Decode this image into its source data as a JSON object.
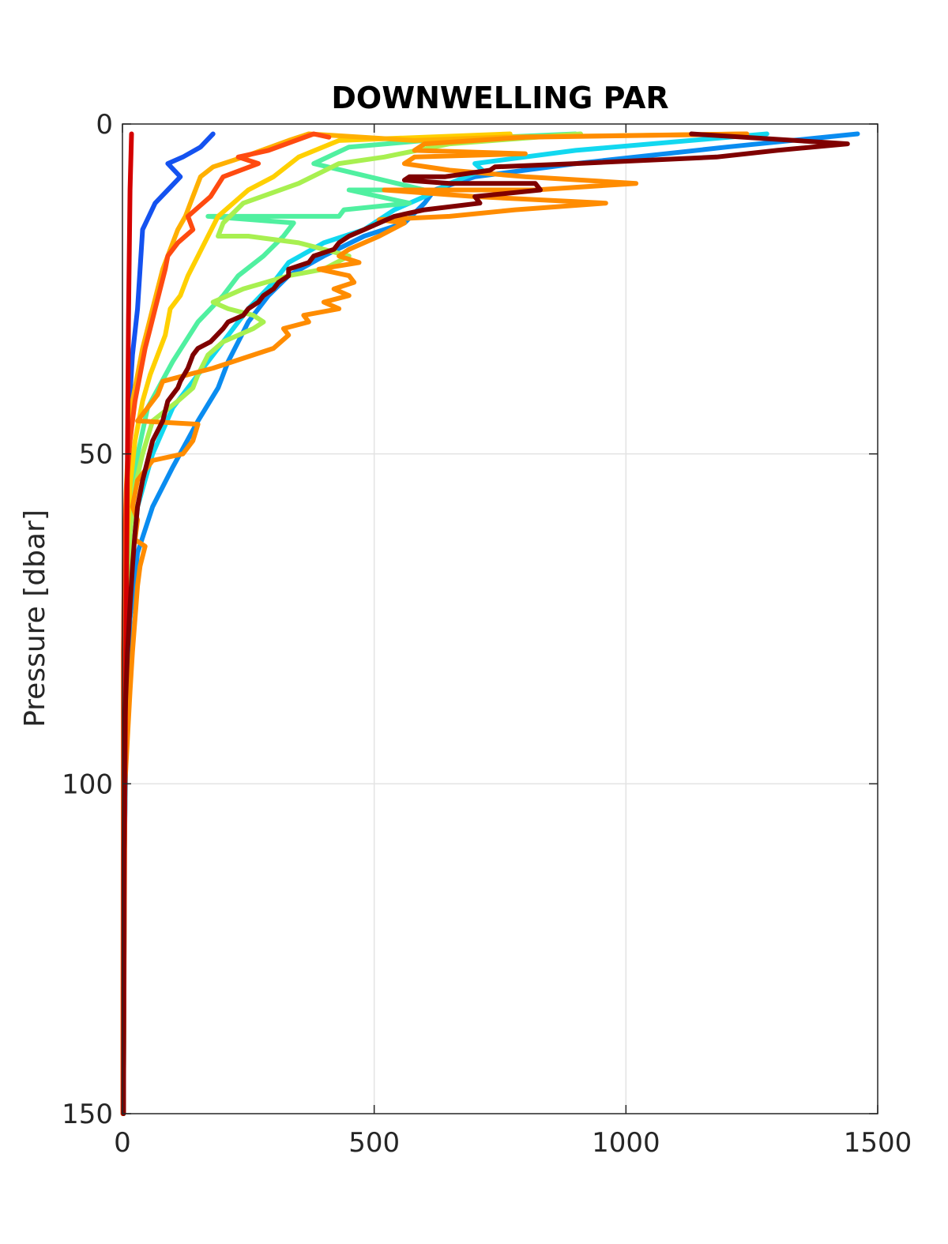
{
  "chart_data": {
    "type": "line",
    "title": "DOWNWELLING PAR",
    "xlabel": "",
    "ylabel": "Pressure [dbar]",
    "xlim": [
      0,
      1500
    ],
    "ylim": [
      0,
      150
    ],
    "y_reversed": true,
    "grid": true,
    "xticks": [
      0,
      500,
      1000,
      1500
    ],
    "yticks": [
      0,
      50,
      100,
      150
    ],
    "series": [
      {
        "color": "#1452f0",
        "points": [
          [
            180,
            1.5
          ],
          [
            155,
            3.5
          ],
          [
            120,
            5
          ],
          [
            90,
            6
          ],
          [
            115,
            8
          ],
          [
            90,
            10
          ],
          [
            65,
            12
          ],
          [
            40,
            16
          ],
          [
            35,
            22
          ],
          [
            30,
            28
          ],
          [
            20,
            35
          ],
          [
            12,
            45
          ],
          [
            8,
            60
          ],
          [
            5,
            80
          ],
          [
            3,
            100
          ],
          [
            2,
            150
          ]
        ]
      },
      {
        "color": "#0a8cf0",
        "points": [
          [
            1460,
            1.5
          ],
          [
            1200,
            3.5
          ],
          [
            900,
            6
          ],
          [
            700,
            8
          ],
          [
            620,
            10
          ],
          [
            600,
            12
          ],
          [
            560,
            15
          ],
          [
            480,
            17
          ],
          [
            400,
            20
          ],
          [
            330,
            23
          ],
          [
            290,
            26
          ],
          [
            250,
            30
          ],
          [
            230,
            33
          ],
          [
            210,
            36
          ],
          [
            190,
            40
          ],
          [
            150,
            45
          ],
          [
            100,
            52
          ],
          [
            60,
            58
          ],
          [
            30,
            65
          ],
          [
            15,
            75
          ],
          [
            8,
            90
          ],
          [
            4,
            110
          ],
          [
            2,
            150
          ]
        ]
      },
      {
        "color": "#12d8f0",
        "points": [
          [
            1280,
            1.5
          ],
          [
            900,
            4
          ],
          [
            700,
            6
          ],
          [
            715,
            7
          ],
          [
            650,
            9
          ],
          [
            600,
            11
          ],
          [
            540,
            13
          ],
          [
            480,
            16
          ],
          [
            400,
            18
          ],
          [
            330,
            21
          ],
          [
            300,
            24
          ],
          [
            250,
            28
          ],
          [
            200,
            33
          ],
          [
            150,
            38
          ],
          [
            100,
            43
          ],
          [
            60,
            50
          ],
          [
            30,
            58
          ],
          [
            15,
            70
          ],
          [
            8,
            85
          ],
          [
            4,
            110
          ],
          [
            2,
            150
          ]
        ]
      },
      {
        "color": "#50f0a0",
        "points": [
          [
            900,
            1.5
          ],
          [
            600,
            2.5
          ],
          [
            450,
            3.5
          ],
          [
            380,
            6
          ],
          [
            600,
            10
          ],
          [
            450,
            10
          ],
          [
            570,
            12
          ],
          [
            440,
            13
          ],
          [
            430,
            14
          ],
          [
            170,
            14
          ],
          [
            340,
            15
          ],
          [
            320,
            17
          ],
          [
            280,
            20
          ],
          [
            230,
            23
          ],
          [
            200,
            26
          ],
          [
            150,
            30
          ],
          [
            100,
            36
          ],
          [
            50,
            43
          ],
          [
            25,
            52
          ],
          [
            12,
            62
          ],
          [
            6,
            75
          ],
          [
            3,
            95
          ],
          [
            2,
            150
          ]
        ]
      },
      {
        "color": "#a8f050",
        "points": [
          [
            910,
            1.5
          ],
          [
            650,
            3
          ],
          [
            520,
            5
          ],
          [
            430,
            6
          ],
          [
            350,
            9
          ],
          [
            240,
            12
          ],
          [
            200,
            15
          ],
          [
            190,
            17
          ],
          [
            250,
            17
          ],
          [
            350,
            18
          ],
          [
            450,
            20
          ],
          [
            400,
            22
          ],
          [
            330,
            23
          ],
          [
            240,
            25
          ],
          [
            180,
            27
          ],
          [
            210,
            28
          ],
          [
            260,
            29
          ],
          [
            280,
            30
          ],
          [
            260,
            31
          ],
          [
            200,
            33
          ],
          [
            170,
            35
          ],
          [
            150,
            38
          ],
          [
            140,
            40
          ],
          [
            110,
            42
          ],
          [
            60,
            45
          ],
          [
            40,
            50
          ],
          [
            25,
            55
          ],
          [
            15,
            62
          ],
          [
            8,
            75
          ],
          [
            4,
            95
          ],
          [
            2,
            150
          ]
        ]
      },
      {
        "color": "#ffd000",
        "points": [
          [
            770,
            1.5
          ],
          [
            430,
            2.5
          ],
          [
            350,
            5
          ],
          [
            300,
            8
          ],
          [
            250,
            10
          ],
          [
            220,
            12
          ],
          [
            190,
            14
          ],
          [
            170,
            17
          ],
          [
            150,
            20
          ],
          [
            130,
            23
          ],
          [
            115,
            26
          ],
          [
            95,
            28
          ],
          [
            85,
            32
          ],
          [
            70,
            35
          ],
          [
            55,
            38
          ],
          [
            40,
            42
          ],
          [
            25,
            48
          ],
          [
            15,
            55
          ],
          [
            8,
            65
          ],
          [
            4,
            80
          ],
          [
            2,
            100
          ],
          [
            1,
            150
          ]
        ]
      },
      {
        "color": "#ffb000",
        "points": [
          [
            1240,
            1.5
          ],
          [
            750,
            2
          ],
          [
            580,
            2.5
          ],
          [
            370,
            1.5
          ],
          [
            330,
            2.5
          ],
          [
            240,
            5
          ],
          [
            180,
            6.5
          ],
          [
            155,
            8
          ],
          [
            145,
            10
          ],
          [
            135,
            12
          ],
          [
            125,
            14
          ],
          [
            110,
            16
          ],
          [
            100,
            18
          ],
          [
            90,
            20
          ],
          [
            80,
            22
          ],
          [
            70,
            25
          ],
          [
            60,
            28
          ],
          [
            50,
            31
          ],
          [
            40,
            34
          ],
          [
            30,
            38
          ],
          [
            20,
            42
          ],
          [
            12,
            48
          ],
          [
            7,
            56
          ],
          [
            4,
            65
          ],
          [
            2,
            80
          ],
          [
            1,
            150
          ]
        ]
      },
      {
        "color": "#ff8c00",
        "points": [
          [
            1240,
            1.5
          ],
          [
            800,
            2
          ],
          [
            600,
            3
          ],
          [
            580,
            4
          ],
          [
            800,
            4.5
          ],
          [
            580,
            5
          ],
          [
            560,
            6
          ],
          [
            650,
            7
          ],
          [
            800,
            8
          ],
          [
            1020,
            9
          ],
          [
            820,
            10
          ],
          [
            520,
            10
          ],
          [
            700,
            11
          ],
          [
            960,
            12
          ],
          [
            780,
            13
          ],
          [
            650,
            14
          ],
          [
            510,
            14.5
          ],
          [
            560,
            15
          ],
          [
            510,
            17
          ],
          [
            480,
            18
          ],
          [
            450,
            19
          ],
          [
            430,
            20
          ],
          [
            470,
            21
          ],
          [
            390,
            22
          ],
          [
            450,
            23
          ],
          [
            460,
            24
          ],
          [
            420,
            25
          ],
          [
            450,
            26
          ],
          [
            400,
            27
          ],
          [
            430,
            28
          ],
          [
            360,
            29
          ],
          [
            370,
            30
          ],
          [
            320,
            31
          ],
          [
            330,
            32
          ],
          [
            300,
            34
          ],
          [
            260,
            35
          ],
          [
            180,
            37
          ],
          [
            130,
            38
          ],
          [
            80,
            39
          ],
          [
            70,
            41
          ],
          [
            50,
            43
          ],
          [
            30,
            45
          ],
          [
            150,
            45.5
          ],
          [
            140,
            48
          ],
          [
            120,
            50
          ],
          [
            60,
            51
          ],
          [
            30,
            54
          ],
          [
            20,
            58
          ],
          [
            30,
            60
          ],
          [
            25,
            63
          ],
          [
            45,
            64
          ],
          [
            35,
            67
          ],
          [
            30,
            70
          ],
          [
            25,
            75
          ],
          [
            20,
            80
          ],
          [
            15,
            86
          ],
          [
            5,
            100
          ],
          [
            2,
            150
          ]
        ]
      },
      {
        "color": "#ff4a10",
        "points": [
          [
            410,
            2
          ],
          [
            380,
            1.5
          ],
          [
            290,
            4
          ],
          [
            230,
            5
          ],
          [
            270,
            6
          ],
          [
            200,
            8
          ],
          [
            175,
            11
          ],
          [
            130,
            14
          ],
          [
            140,
            16
          ],
          [
            110,
            18
          ],
          [
            90,
            20
          ],
          [
            85,
            22
          ],
          [
            75,
            25
          ],
          [
            65,
            28
          ],
          [
            55,
            31
          ],
          [
            45,
            34
          ],
          [
            35,
            38
          ],
          [
            25,
            42
          ],
          [
            15,
            48
          ],
          [
            8,
            55
          ],
          [
            4,
            65
          ],
          [
            2,
            80
          ],
          [
            1,
            150
          ]
        ]
      },
      {
        "color": "#d40000",
        "points": [
          [
            18,
            1.5
          ],
          [
            15,
            10
          ],
          [
            12,
            30
          ],
          [
            10,
            50
          ],
          [
            8,
            70
          ],
          [
            6,
            90
          ],
          [
            4,
            110
          ],
          [
            3,
            130
          ],
          [
            2,
            150
          ]
        ]
      },
      {
        "color": "#7f0000",
        "points": [
          [
            1130,
            1.5
          ],
          [
            1440,
            3
          ],
          [
            1300,
            4
          ],
          [
            1180,
            5
          ],
          [
            900,
            6
          ],
          [
            740,
            6.5
          ],
          [
            730,
            7
          ],
          [
            640,
            8
          ],
          [
            570,
            8
          ],
          [
            560,
            8.5
          ],
          [
            650,
            9
          ],
          [
            820,
            9
          ],
          [
            830,
            10
          ],
          [
            700,
            11
          ],
          [
            710,
            12
          ],
          [
            600,
            13
          ],
          [
            540,
            14
          ],
          [
            480,
            16
          ],
          [
            450,
            17
          ],
          [
            430,
            18
          ],
          [
            420,
            19
          ],
          [
            380,
            20
          ],
          [
            370,
            21
          ],
          [
            330,
            22
          ],
          [
            330,
            23
          ],
          [
            310,
            24
          ],
          [
            300,
            25
          ],
          [
            280,
            26
          ],
          [
            270,
            27
          ],
          [
            250,
            28
          ],
          [
            240,
            29
          ],
          [
            210,
            30
          ],
          [
            200,
            31
          ],
          [
            175,
            33
          ],
          [
            150,
            34
          ],
          [
            140,
            35
          ],
          [
            130,
            37
          ],
          [
            115,
            39
          ],
          [
            110,
            40
          ],
          [
            90,
            42
          ],
          [
            80,
            45
          ],
          [
            60,
            48
          ],
          [
            50,
            51
          ],
          [
            40,
            54
          ],
          [
            30,
            58
          ],
          [
            25,
            62
          ],
          [
            20,
            67
          ],
          [
            15,
            73
          ],
          [
            10,
            80
          ],
          [
            5,
            90
          ],
          [
            3,
            110
          ],
          [
            2,
            150
          ]
        ]
      }
    ]
  }
}
